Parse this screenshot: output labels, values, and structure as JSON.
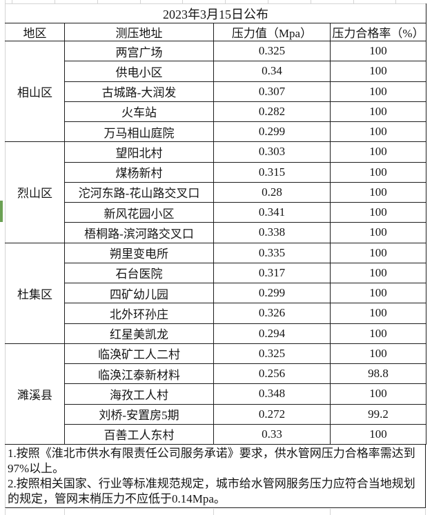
{
  "title": "2023年3月15日公布",
  "table": {
    "headers": [
      "地区",
      "测压地址",
      "压力值（Mpa）",
      "压力合格率（%）"
    ],
    "regions": [
      {
        "name": "相山区",
        "rows": [
          {
            "address": "两宫广场",
            "pressure": "0.325",
            "rate": "100"
          },
          {
            "address": "供电小区",
            "pressure": "0.34",
            "rate": "100"
          },
          {
            "address": "古城路-大润发",
            "pressure": "0.307",
            "rate": "100"
          },
          {
            "address": "火车站",
            "pressure": "0.282",
            "rate": "100"
          },
          {
            "address": "万马相山庭院",
            "pressure": "0.299",
            "rate": "100"
          }
        ]
      },
      {
        "name": "烈山区",
        "rows": [
          {
            "address": "望阳北村",
            "pressure": "0.303",
            "rate": "100"
          },
          {
            "address": "煤杨新村",
            "pressure": "0.315",
            "rate": "100"
          },
          {
            "address": "沱河东路-花山路交叉口",
            "pressure": "0.28",
            "rate": "100"
          },
          {
            "address": "新风花园小区",
            "pressure": "0.341",
            "rate": "100"
          },
          {
            "address": "梧桐路-滨河路交叉口",
            "pressure": "0.338",
            "rate": "100"
          }
        ]
      },
      {
        "name": "杜集区",
        "rows": [
          {
            "address": "朔里变电所",
            "pressure": "0.335",
            "rate": "100"
          },
          {
            "address": "石台医院",
            "pressure": "0.317",
            "rate": "100"
          },
          {
            "address": "四矿幼儿园",
            "pressure": "0.299",
            "rate": "100"
          },
          {
            "address": "北外环孙庄",
            "pressure": "0.326",
            "rate": "100"
          },
          {
            "address": "红星美凯龙",
            "pressure": "0.294",
            "rate": "100"
          }
        ]
      },
      {
        "name": "濉溪县",
        "rows": [
          {
            "address": "临涣矿工人二村",
            "pressure": "0.325",
            "rate": "100"
          },
          {
            "address": "临涣江泰新材料",
            "pressure": "0.256",
            "rate": "98.8"
          },
          {
            "address": "海孜工人村",
            "pressure": "0.348",
            "rate": "100"
          },
          {
            "address": "刘桥-安置房5期",
            "pressure": "0.272",
            "rate": "99.2"
          },
          {
            "address": "百善工人东村",
            "pressure": "0.33",
            "rate": "100"
          }
        ]
      }
    ]
  },
  "notes": [
    "1.按照《淮北市供水有限责任公司服务承诺》要求，供水管网压力合格率需达到97%以上。",
    "2.按照相关国家、行业等标准规范规定，城市给水管网服务压力应符合当地规划的规定，管网末梢压力不应低于0.14Mpa。"
  ],
  "colors": {
    "border": "#1c1c1c",
    "gridline": "#d4d4d4",
    "green_bar": "#6ba154"
  }
}
